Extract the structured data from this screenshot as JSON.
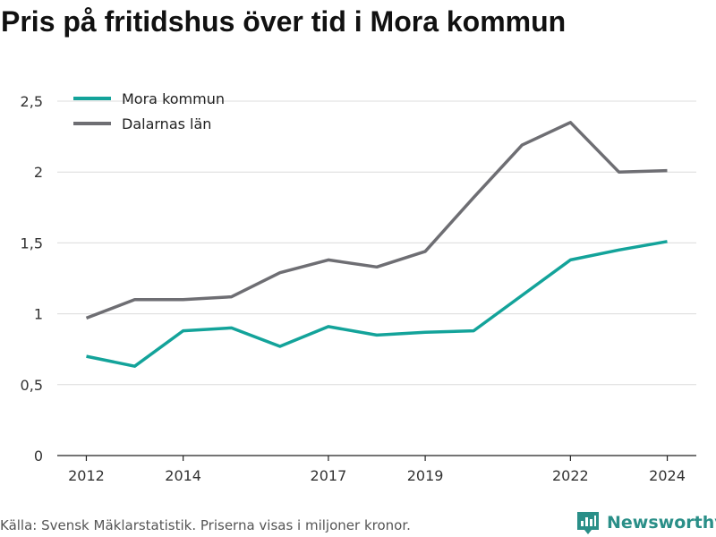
{
  "title": "Pris på fritidshus över tid i Mora kommun",
  "source": "Källa: Svensk Mäklarstatistik. Priserna visas i miljoner kronor.",
  "brand": {
    "name": "Newsworthy",
    "icon": "bar-chart-logo-icon",
    "color": "#2a8f88"
  },
  "chart_data": {
    "type": "line",
    "title": "Pris på fritidshus över tid i Mora kommun",
    "xlabel": "",
    "ylabel": "",
    "x": [
      2012,
      2013,
      2014,
      2015,
      2016,
      2017,
      2018,
      2019,
      2020,
      2021,
      2022,
      2023,
      2024
    ],
    "x_ticks": [
      {
        "value": 2012,
        "label": "2012"
      },
      {
        "value": 2014,
        "label": "2014"
      },
      {
        "value": 2017,
        "label": "2017"
      },
      {
        "value": 2019,
        "label": "2019"
      },
      {
        "value": 2022,
        "label": "2022"
      },
      {
        "value": 2024,
        "label": "2024"
      }
    ],
    "y_ticks": [
      {
        "value": 0,
        "label": "0"
      },
      {
        "value": 0.5,
        "label": "0,5"
      },
      {
        "value": 1,
        "label": "1"
      },
      {
        "value": 1.5,
        "label": "1,5"
      },
      {
        "value": 2,
        "label": "2"
      },
      {
        "value": 2.5,
        "label": "2,5"
      }
    ],
    "xlim": [
      2011.4,
      2024.6
    ],
    "ylim": [
      0,
      2.5
    ],
    "grid": true,
    "legend": "top-left",
    "series": [
      {
        "name": "Mora kommun",
        "color": "#13a39a",
        "values": [
          0.7,
          0.63,
          0.88,
          0.9,
          0.77,
          0.91,
          0.85,
          0.87,
          0.88,
          1.13,
          1.38,
          1.45,
          1.51
        ]
      },
      {
        "name": "Dalarnas län",
        "color": "#6e6e73",
        "values": [
          0.97,
          1.1,
          1.1,
          1.12,
          1.29,
          1.38,
          1.33,
          1.44,
          1.82,
          2.19,
          2.35,
          2.0,
          2.01
        ]
      }
    ]
  }
}
